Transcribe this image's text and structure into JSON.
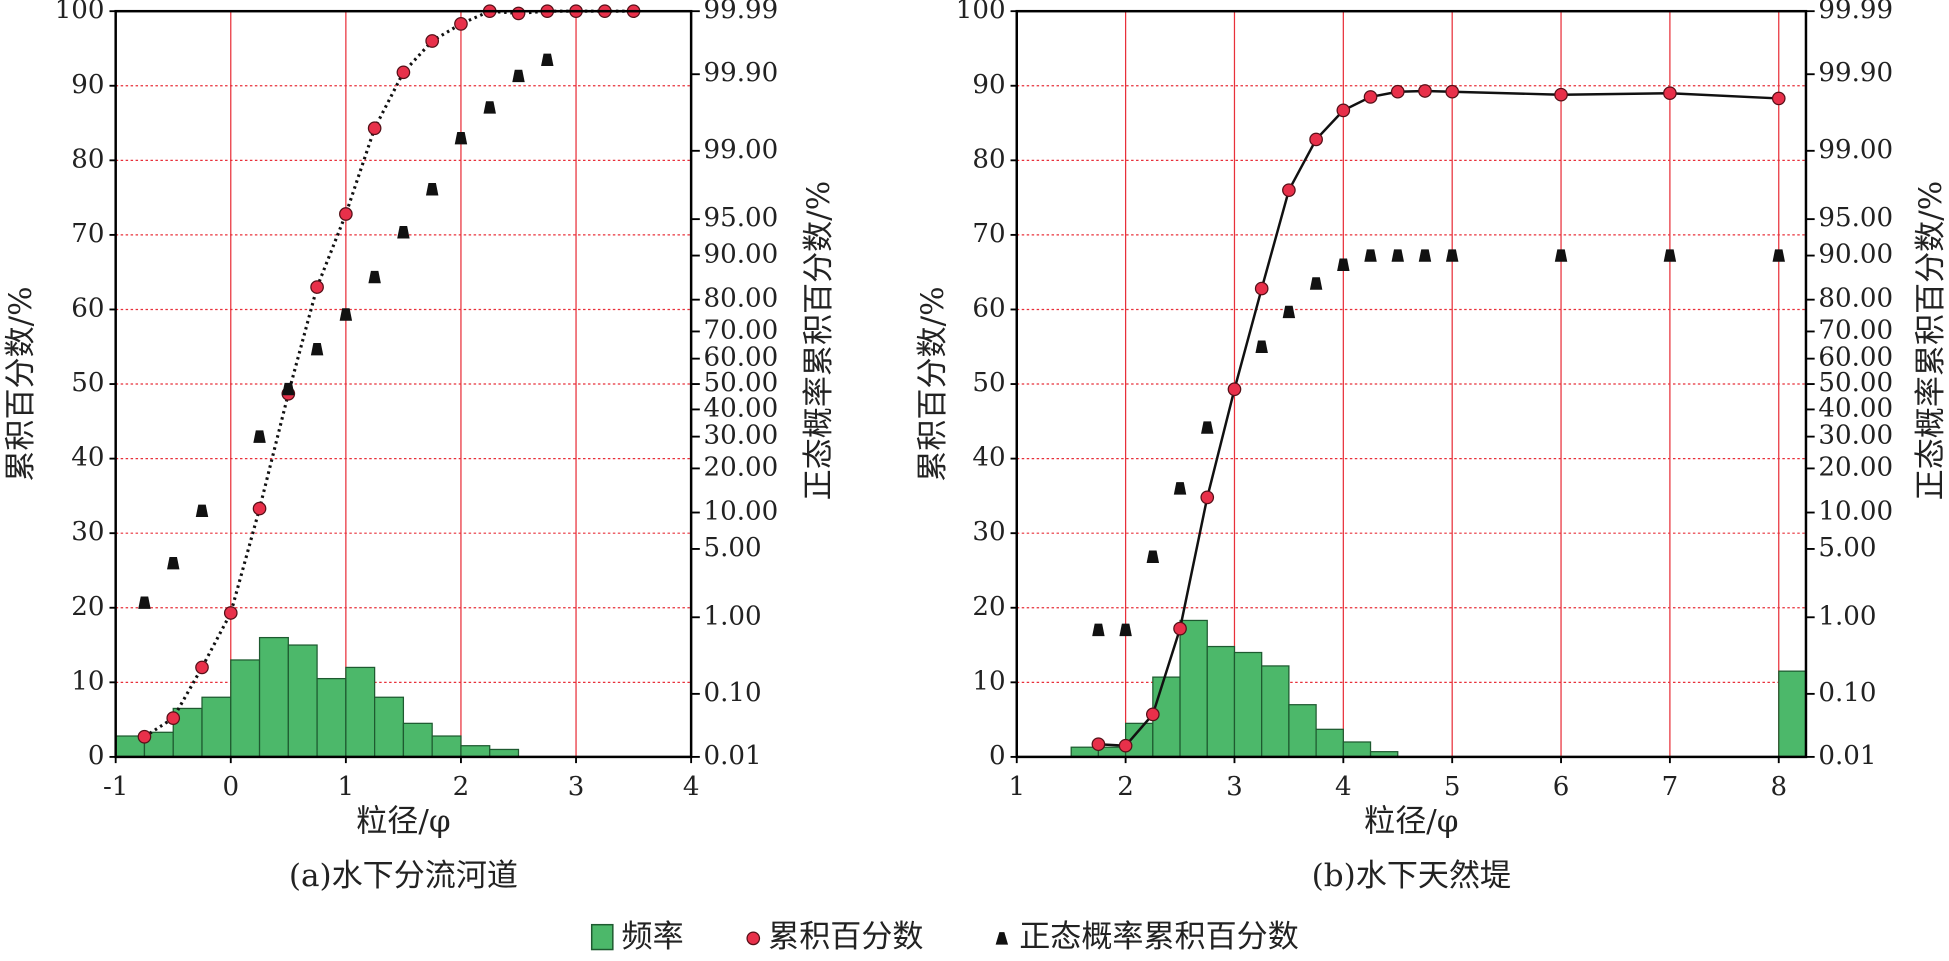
{
  "chart_data": [
    {
      "type": "combo",
      "caption": "(a)水下分流河道",
      "x_label": "粒径/φ",
      "y_label": "累积百分数/%",
      "y2_label": "正态概率累积百分数/%",
      "xlim": [
        -1,
        4
      ],
      "xticks": [
        -1,
        0,
        1,
        2,
        3,
        4
      ],
      "ylim": [
        0,
        100
      ],
      "yticks": [
        0,
        10,
        20,
        30,
        40,
        50,
        60,
        70,
        80,
        90,
        100
      ],
      "y2scale": "probability",
      "y2lim": [
        0.01,
        99.99
      ],
      "y2ticks": [
        0.01,
        {
          "value": 0.1,
          "label": "0.10"
        },
        {
          "value": 1,
          "label": "1.00"
        },
        {
          "value": 5,
          "label": "5.00"
        },
        {
          "value": 10,
          "label": "10.00"
        },
        {
          "value": 20,
          "label": "20.00"
        },
        {
          "value": 30,
          "label": "30.00"
        },
        {
          "value": 40,
          "label": "40.00"
        },
        {
          "value": 50,
          "label": "50.00"
        },
        {
          "value": 60,
          "label": "60.00"
        },
        {
          "value": 70,
          "label": "70.00"
        },
        {
          "value": 80,
          "label": "80.00"
        },
        {
          "value": 90,
          "label": "90.00"
        },
        {
          "value": 95,
          "label": "95.00"
        },
        {
          "value": 99,
          "label": "99.00"
        },
        {
          "value": 99.9,
          "label": "99.90"
        },
        99.99
      ],
      "grid": true,
      "grid_color": "#e8303a",
      "series": [
        {
          "name": "频率",
          "type": "histogram",
          "color": "#4cb86a",
          "bins": [
            -1,
            -0.75,
            -0.5,
            -0.25,
            0,
            0.25,
            0.5,
            0.75,
            1,
            1.25,
            1.5,
            1.75,
            2,
            2.25,
            2.5
          ],
          "values": [
            2.8,
            3.3,
            6.5,
            8,
            13,
            16,
            15,
            10.5,
            12,
            8,
            4.5,
            2.8,
            1.5,
            1
          ]
        },
        {
          "name": "累积百分数",
          "type": "line",
          "color": "#e8304a",
          "line_style": "dotted",
          "x": [
            -0.75,
            -0.5,
            -0.25,
            0,
            0.25,
            0.5,
            0.75,
            1,
            1.25,
            1.5,
            1.75,
            2,
            2.25,
            2.5,
            2.75,
            3,
            3.25,
            3.5
          ],
          "values": [
            2.7,
            5.2,
            12,
            19.3,
            33.3,
            48.7,
            63,
            72.8,
            84.3,
            91.8,
            96,
            98.3,
            100,
            99.7,
            100,
            100,
            100,
            100
          ]
        },
        {
          "name": "正态概率累积百分数",
          "type": "scatter",
          "axis": "y2",
          "color": "#111111",
          "x": [
            -0.75,
            -0.5,
            -0.25,
            0.25,
            0.5,
            0.75,
            1,
            1.25,
            1.5,
            1.75,
            2,
            2.25,
            2.5,
            2.75
          ],
          "values": [
            1.46,
            3.7,
            10.3,
            30,
            48,
            63.6,
            75.6,
            85.7,
            93.5,
            97.4,
            99.29,
            99.71,
            99.894,
            99.939
          ]
        }
      ]
    },
    {
      "type": "combo",
      "caption": "(b)水下天然堤",
      "x_label": "粒径/φ",
      "y_label": "累积百分数/%",
      "y2_label": "正态概率累积百分数/%",
      "xlim": [
        1,
        8.25
      ],
      "xticks": [
        1,
        2,
        3,
        4,
        5,
        6,
        7,
        8
      ],
      "ylim": [
        0,
        100
      ],
      "yticks": [
        0,
        10,
        20,
        30,
        40,
        50,
        60,
        70,
        80,
        90,
        100
      ],
      "y2scale": "probability",
      "y2lim": [
        0.01,
        99.99
      ],
      "y2ticks": [
        0.01,
        {
          "value": 0.1,
          "label": "0.10"
        },
        {
          "value": 1,
          "label": "1.00"
        },
        {
          "value": 5,
          "label": "5.00"
        },
        {
          "value": 10,
          "label": "10.00"
        },
        {
          "value": 20,
          "label": "20.00"
        },
        {
          "value": 30,
          "label": "30.00"
        },
        {
          "value": 40,
          "label": "40.00"
        },
        {
          "value": 50,
          "label": "50.00"
        },
        {
          "value": 60,
          "label": "60.00"
        },
        {
          "value": 70,
          "label": "70.00"
        },
        {
          "value": 80,
          "label": "80.00"
        },
        {
          "value": 90,
          "label": "90.00"
        },
        {
          "value": 95,
          "label": "95.00"
        },
        {
          "value": 99,
          "label": "99.00"
        },
        {
          "value": 99.9,
          "label": "99.90"
        },
        99.99
      ],
      "grid": true,
      "grid_color": "#e8303a",
      "series": [
        {
          "type": "histogram",
          "color": "#4cb86a",
          "bins": [
            1.5,
            1.75,
            2,
            2.25,
            2.5,
            2.75,
            3,
            3.25,
            3.5,
            3.75,
            4,
            4.25,
            4.5,
            4.75,
            5,
            5.25,
            5.5,
            5.75,
            6,
            6.25,
            6.5,
            6.75,
            7,
            7.25,
            7.5,
            7.75,
            8,
            8.25
          ],
          "values": [
            1.3,
            1.3,
            4.5,
            10.7,
            18.3,
            14.8,
            14,
            12.2,
            7,
            3.7,
            2,
            0.7,
            0,
            0,
            0,
            0,
            0,
            0,
            0,
            0,
            0,
            0,
            0,
            0,
            0,
            0,
            11.5
          ]
        },
        {
          "type": "line",
          "color": "#e8304a",
          "line_style": "solid",
          "x": [
            1.75,
            2,
            2.25,
            2.5,
            2.75,
            3,
            3.25,
            3.5,
            3.75,
            4,
            4.25,
            4.5,
            4.75,
            5,
            6,
            7,
            8
          ],
          "values": [
            1.7,
            1.5,
            5.7,
            17.2,
            34.8,
            49.3,
            62.8,
            76,
            82.8,
            86.7,
            88.5,
            89.2,
            89.3,
            89.2,
            88.8,
            89,
            88.3
          ]
        },
        {
          "type": "scatter",
          "axis": "y2",
          "color": "#111111",
          "x": [
            1.75,
            2,
            2.25,
            2.5,
            2.75,
            3.25,
            3.5,
            3.75,
            4,
            4.25,
            4.5,
            4.75,
            5,
            6,
            7,
            8
          ],
          "values": [
            0.71,
            0.71,
            4.25,
            14.9,
            33.2,
            64.5,
            76.4,
            84.2,
            88.3,
            90,
            90,
            90,
            90,
            90,
            90,
            90
          ]
        }
      ]
    }
  ]
}
